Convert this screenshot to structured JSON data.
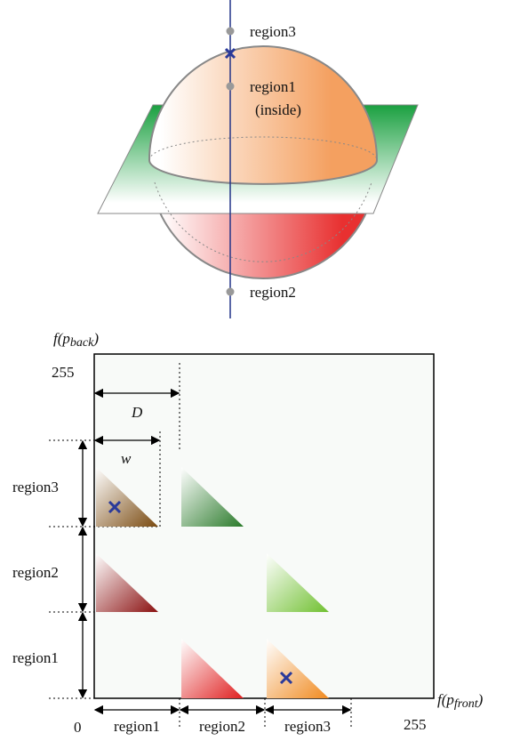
{
  "sphere": {
    "labels": [
      "region3",
      "region1",
      "(inside)",
      "region2"
    ]
  },
  "plot": {
    "y_axis_label": {
      "prefix": "f(p",
      "subscript": "back",
      "suffix": ")"
    },
    "x_axis_label": {
      "prefix": "f(p",
      "subscript": "front",
      "suffix": ")"
    },
    "y_max": "255",
    "x_max": "255",
    "origin": "0",
    "width_labels": [
      "D",
      "w"
    ],
    "row_labels": [
      "region3",
      "region2",
      "region1"
    ],
    "column_labels": [
      "region1",
      "region2",
      "region3"
    ]
  }
}
